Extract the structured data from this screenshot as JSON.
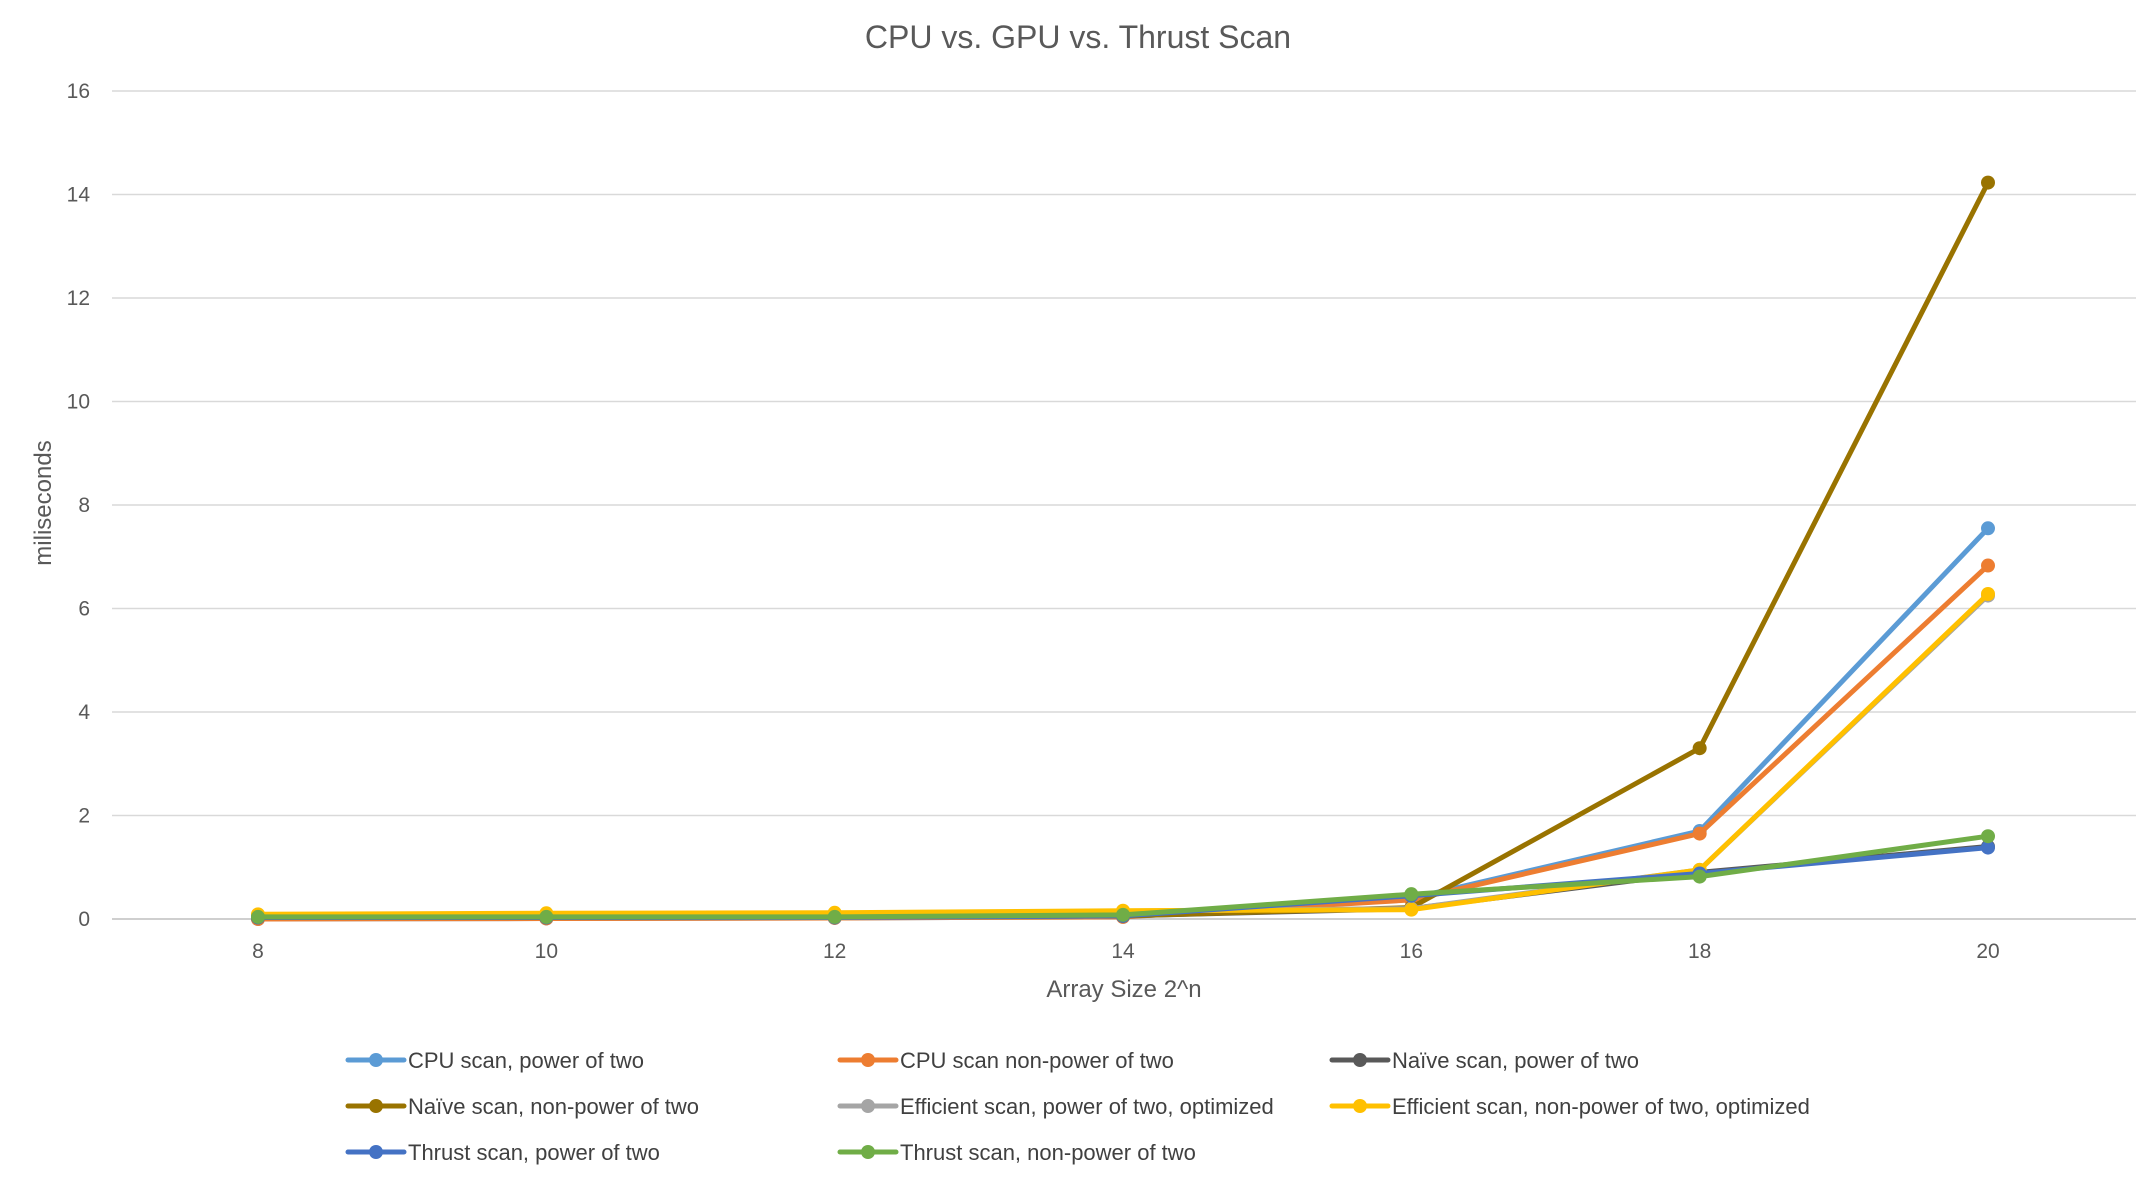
{
  "chart_data": {
    "type": "line",
    "title": "CPU vs. GPU vs. Thrust Scan",
    "xlabel": "Array Size 2^n",
    "ylabel": "miliseconds",
    "x": [
      8,
      10,
      12,
      14,
      16,
      18,
      20
    ],
    "ylim": [
      0,
      16
    ],
    "yticks": [
      0,
      2,
      4,
      6,
      8,
      10,
      12,
      14,
      16
    ],
    "grid": "horizontal",
    "legend_position": "bottom",
    "series": [
      {
        "name": "CPU scan, power of two",
        "color": "#5B9BD5",
        "values": [
          0.0,
          0.01,
          0.02,
          0.04,
          0.4,
          1.7,
          7.55
        ]
      },
      {
        "name": "CPU scan non-power of two",
        "color": "#ED7D31",
        "values": [
          0.0,
          0.01,
          0.02,
          0.04,
          0.37,
          1.65,
          6.83
        ]
      },
      {
        "name": "Naïve scan, power of two",
        "color": "#595959",
        "values": [
          0.03,
          0.03,
          0.04,
          0.06,
          0.2,
          0.9,
          1.4
        ]
      },
      {
        "name": "Naïve scan, non-power of two",
        "color": "#997300",
        "values": [
          0.03,
          0.03,
          0.04,
          0.06,
          0.22,
          3.3,
          14.23
        ]
      },
      {
        "name": "Efficient scan, power of two, optimized",
        "color": "#A5A5A5",
        "values": [
          0.08,
          0.1,
          0.11,
          0.15,
          0.2,
          0.95,
          6.25
        ]
      },
      {
        "name": "Efficient scan, non-power of two, optimized",
        "color": "#FFC000",
        "values": [
          0.09,
          0.11,
          0.12,
          0.16,
          0.18,
          0.95,
          6.28
        ]
      },
      {
        "name": "Thrust scan, power of two",
        "color": "#4472C4",
        "values": [
          0.03,
          0.03,
          0.03,
          0.06,
          0.45,
          0.88,
          1.38
        ]
      },
      {
        "name": "Thrust scan, non-power of two",
        "color": "#70AD47",
        "values": [
          0.04,
          0.04,
          0.04,
          0.08,
          0.48,
          0.82,
          1.6
        ]
      }
    ]
  }
}
